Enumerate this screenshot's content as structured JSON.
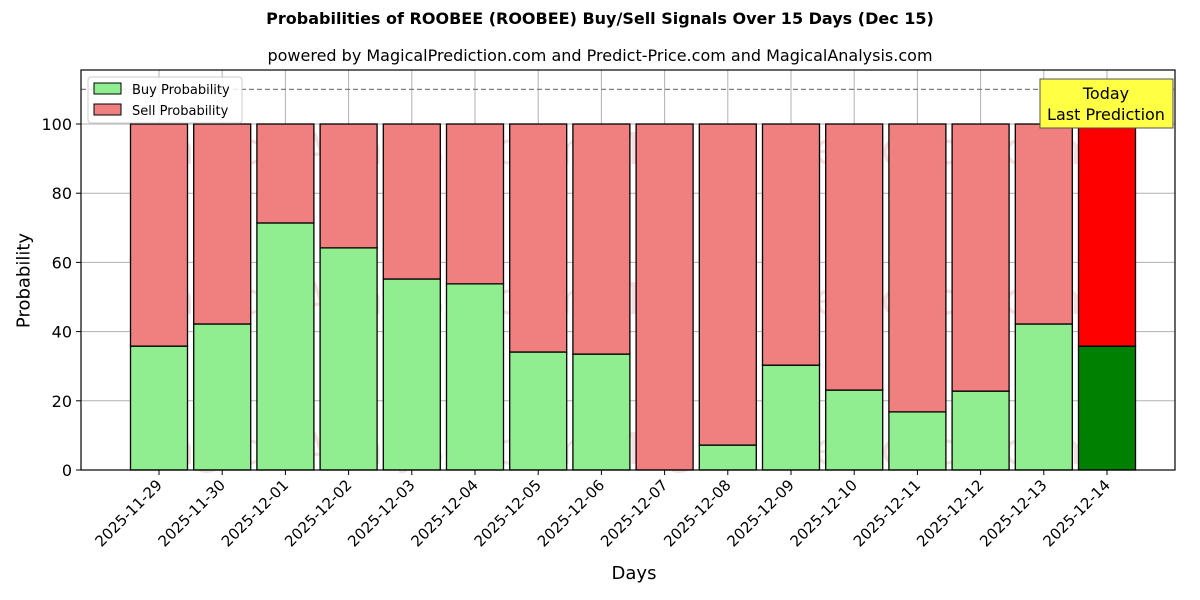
{
  "title": "Probabilities of ROOBEE (ROOBEE) Buy/Sell Signals Over 15 Days (Dec 15)",
  "subtitle": "powered by MagicalPrediction.com and Predict-Price.com and MagicalAnalysis.com",
  "annotation": {
    "line1": "Today",
    "line2": "Last Prediction",
    "bg_color": "#ffff44"
  },
  "watermarks": [
    "MagicalAnalysis.com",
    "MagicalPrediction.com"
  ],
  "colors": {
    "buy": "#90ee90",
    "sell": "#f08080",
    "buy_today": "#008000",
    "sell_today": "#ff0000"
  },
  "chart_data": {
    "type": "bar",
    "stacked": true,
    "title": "Probabilities of ROOBEE (ROOBEE) Buy/Sell Signals Over 15 Days (Dec 15)",
    "subtitle": "powered by MagicalPrediction.com and Predict-Price.com and MagicalAnalysis.com",
    "xlabel": "Days",
    "ylabel": "Probability",
    "ylim": [
      0,
      115
    ],
    "yticks": [
      0,
      20,
      40,
      60,
      80,
      100
    ],
    "grid": true,
    "legend_position": "upper left",
    "reference_line": {
      "y": 110,
      "style": "dashed"
    },
    "categories": [
      "2025-11-29",
      "2025-11-30",
      "2025-12-01",
      "2025-12-02",
      "2025-12-03",
      "2025-12-04",
      "2025-12-05",
      "2025-12-06",
      "2025-12-07",
      "2025-12-08",
      "2025-12-09",
      "2025-12-10",
      "2025-12-11",
      "2025-12-12",
      "2025-12-13",
      "2025-12-14"
    ],
    "series": [
      {
        "name": "Buy Probability",
        "values": [
          35.8,
          42.2,
          71.4,
          64.2,
          55.2,
          53.8,
          34.1,
          33.5,
          0.0,
          7.2,
          30.3,
          23.1,
          16.8,
          22.8,
          42.2,
          35.8
        ]
      },
      {
        "name": "Sell Probability",
        "values": [
          64.2,
          57.8,
          28.6,
          35.8,
          44.8,
          46.2,
          65.9,
          66.5,
          100.0,
          92.8,
          69.7,
          76.9,
          83.2,
          77.2,
          57.8,
          64.2
        ]
      }
    ],
    "highlight": {
      "category": "2025-12-14",
      "label": "Today\nLast Prediction"
    }
  }
}
